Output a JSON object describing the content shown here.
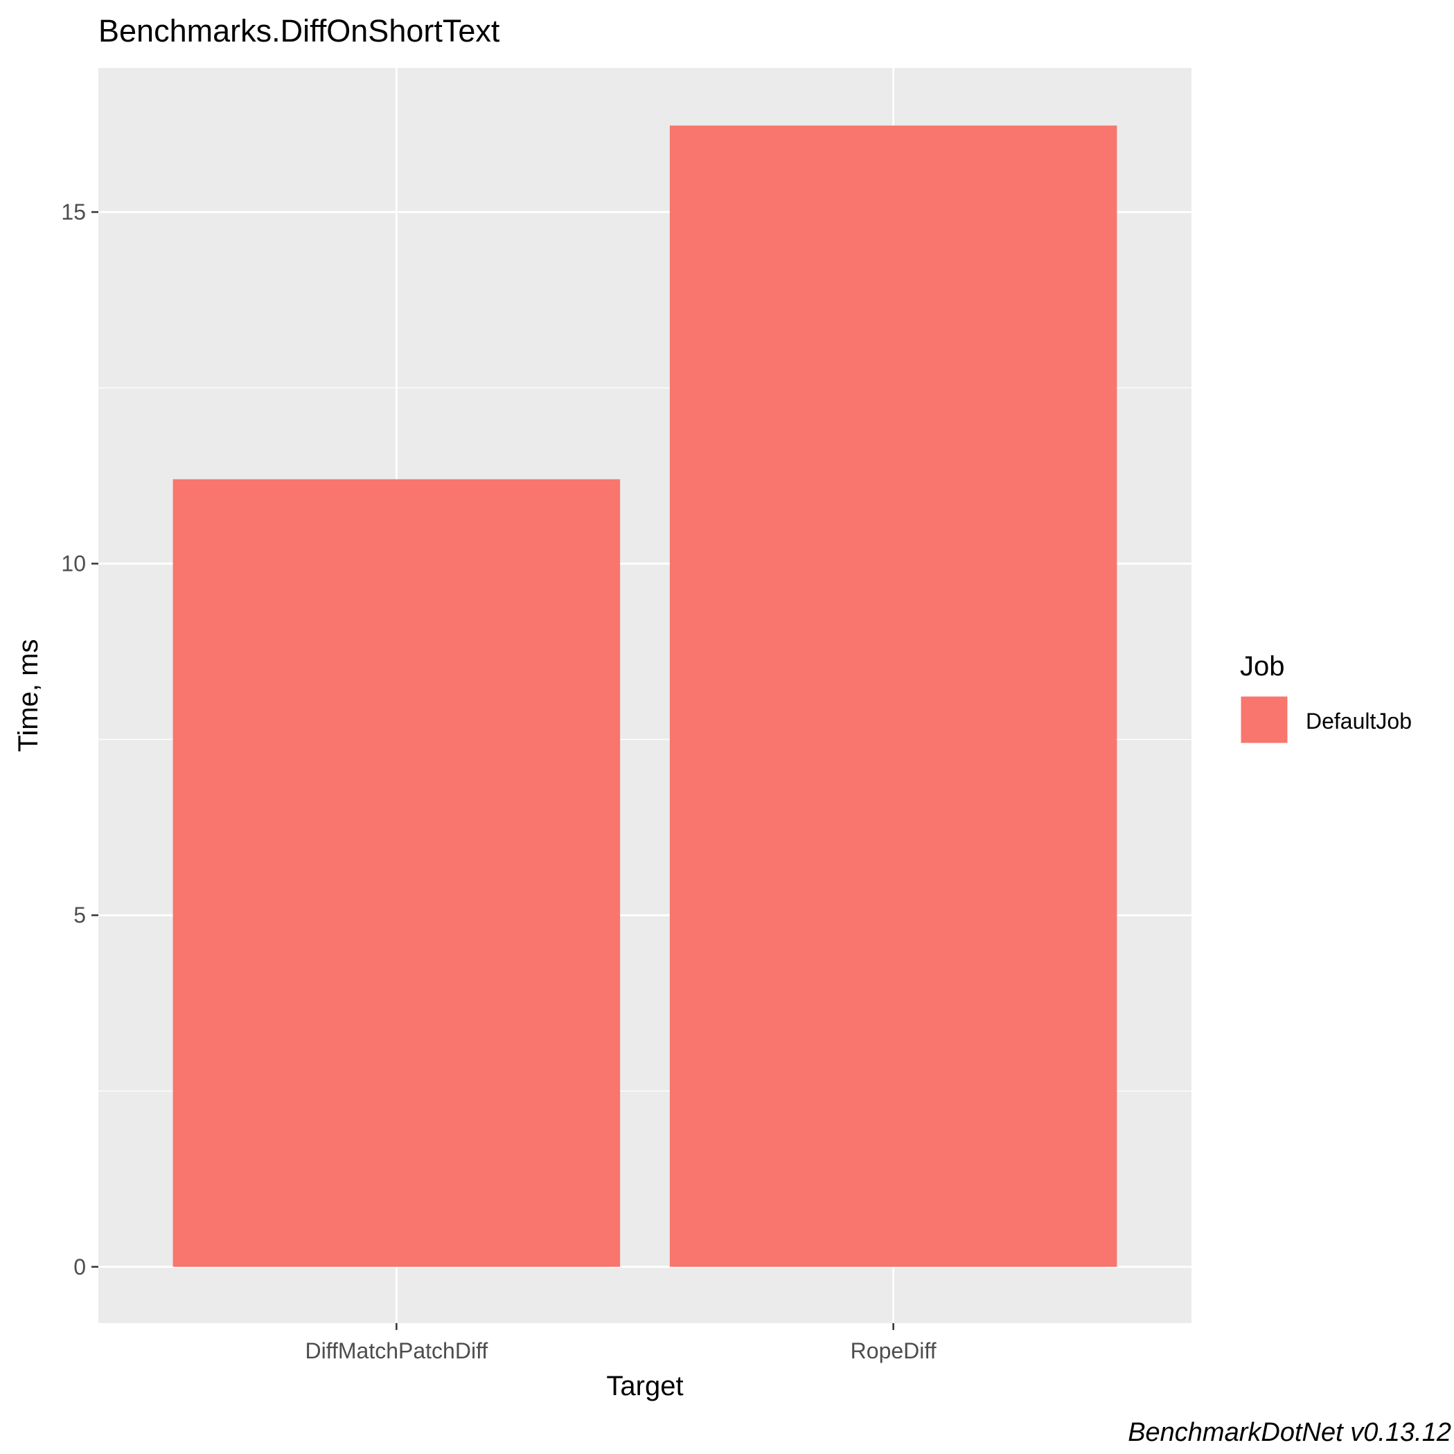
{
  "chart_data": {
    "type": "bar",
    "title": "Benchmarks.DiffOnShortText",
    "xlabel": "Target",
    "ylabel": "Time, ms",
    "categories": [
      "DiffMatchPatchDiff",
      "RopeDiff"
    ],
    "series": [
      {
        "name": "DefaultJob",
        "values": [
          11.2,
          16.23
        ]
      }
    ],
    "ylim": [
      -0.8,
      17.05
    ],
    "yticks": [
      0,
      5,
      10,
      15
    ],
    "grid": true,
    "legend": {
      "title": "Job",
      "position": "right",
      "entries": [
        "DefaultJob"
      ]
    },
    "caption": "BenchmarkDotNet v0.13.12",
    "colors": {
      "bar": "#F8766D",
      "panel": "#EBEBEB",
      "grid": "#FFFFFF",
      "text": "#000000",
      "tick_text": "#4D4D4D",
      "tick": "#333333"
    }
  }
}
